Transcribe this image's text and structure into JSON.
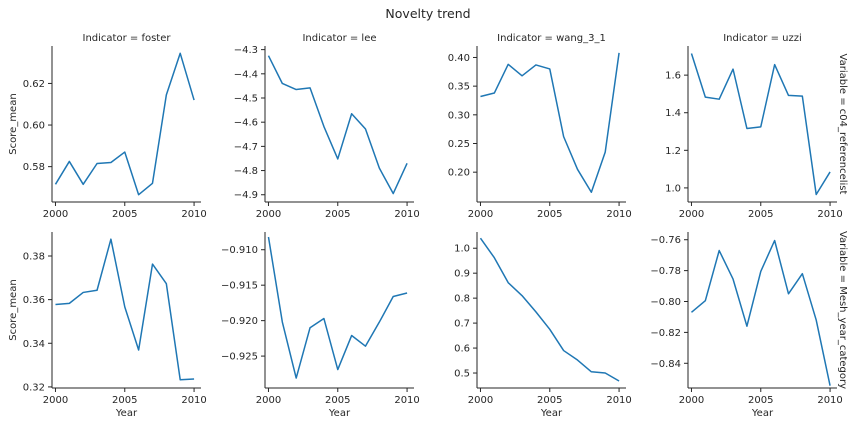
{
  "figure_title": "Novelty trend",
  "colors": {
    "line": "#1f77b4",
    "axis": "#262626"
  },
  "chart_data": [
    {
      "type": "line",
      "panel_title": "Indicator = foster",
      "row_label": "Variable = c04_referencelist",
      "ylabel": "Score_mean",
      "xlabel": "",
      "x": [
        2000,
        2001,
        2002,
        2003,
        2004,
        2005,
        2006,
        2007,
        2008,
        2009,
        2010
      ],
      "values": [
        0.5715,
        0.5825,
        0.5715,
        0.5815,
        0.582,
        0.587,
        0.5665,
        0.572,
        0.6145,
        0.6345,
        0.612
      ],
      "xlim": [
        1999.75,
        2010.5
      ],
      "ylim": [
        0.563,
        0.638
      ],
      "xticks": [
        2000,
        2005,
        2010
      ],
      "xtick_labels": [
        "2000",
        "2005",
        "2010"
      ],
      "yticks": [
        0.58,
        0.6,
        0.62
      ],
      "ytick_labels": [
        "0.58",
        "0.60",
        "0.62"
      ]
    },
    {
      "type": "line",
      "panel_title": "Indicator = lee",
      "row_label": "",
      "ylabel": "",
      "xlabel": "",
      "x": [
        2000,
        2001,
        2002,
        2003,
        2004,
        2005,
        2006,
        2007,
        2008,
        2009,
        2010
      ],
      "values": [
        -4.325,
        -4.44,
        -4.465,
        -4.458,
        -4.618,
        -4.752,
        -4.565,
        -4.628,
        -4.79,
        -4.895,
        -4.77
      ],
      "xlim": [
        1999.75,
        2010.5
      ],
      "ylim": [
        -4.93,
        -4.285
      ],
      "xticks": [
        2000,
        2005,
        2010
      ],
      "xtick_labels": [
        "2000",
        "2005",
        "2010"
      ],
      "yticks": [
        -4.3,
        -4.4,
        -4.5,
        -4.6,
        -4.7,
        -4.8,
        -4.9
      ],
      "ytick_labels": [
        "−4.3",
        "−4.4",
        "−4.5",
        "−4.6",
        "−4.7",
        "−4.8",
        "−4.9"
      ]
    },
    {
      "type": "line",
      "panel_title": "Indicator = wang_3_1",
      "row_label": "",
      "ylabel": "",
      "xlabel": "",
      "x": [
        2000,
        2001,
        2002,
        2003,
        2004,
        2005,
        2006,
        2007,
        2008,
        2009,
        2010
      ],
      "values": [
        0.332,
        0.338,
        0.388,
        0.368,
        0.387,
        0.38,
        0.262,
        0.205,
        0.165,
        0.235,
        0.408
      ],
      "xlim": [
        1999.75,
        2010.5
      ],
      "ylim": [
        0.148,
        0.42
      ],
      "xticks": [
        2000,
        2005,
        2010
      ],
      "xtick_labels": [
        "2000",
        "2005",
        "2010"
      ],
      "yticks": [
        0.2,
        0.25,
        0.3,
        0.35,
        0.4
      ],
      "ytick_labels": [
        "0.20",
        "0.25",
        "0.30",
        "0.35",
        "0.40"
      ]
    },
    {
      "type": "line",
      "panel_title": "Indicator = uzzi",
      "row_label": "Variable = c04_referencelist",
      "ylabel": "",
      "xlabel": "",
      "x": [
        2000,
        2001,
        2002,
        2003,
        2004,
        2005,
        2006,
        2007,
        2008,
        2009,
        2010
      ],
      "values": [
        1.715,
        1.483,
        1.472,
        1.632,
        1.316,
        1.325,
        1.656,
        1.492,
        1.488,
        0.965,
        1.085
      ],
      "xlim": [
        1999.75,
        2010.5
      ],
      "ylim": [
        0.925,
        1.755
      ],
      "xticks": [
        2000,
        2005,
        2010
      ],
      "xtick_labels": [
        "2000",
        "2005",
        "2010"
      ],
      "yticks": [
        1.0,
        1.2,
        1.4,
        1.6
      ],
      "ytick_labels": [
        "1.0",
        "1.2",
        "1.4",
        "1.6"
      ]
    },
    {
      "type": "line",
      "panel_title": "",
      "row_label": "Variable = Mesh_year_category",
      "ylabel": "Score_mean",
      "xlabel": "Year",
      "x": [
        2000,
        2001,
        2002,
        2003,
        2004,
        2005,
        2006,
        2007,
        2008,
        2009,
        2010
      ],
      "values": [
        0.3578,
        0.3583,
        0.3633,
        0.3643,
        0.3877,
        0.3567,
        0.3369,
        0.3763,
        0.3673,
        0.3233,
        0.3236
      ],
      "xlim": [
        1999.75,
        2010.5
      ],
      "ylim": [
        0.3195,
        0.391
      ],
      "xticks": [
        2000,
        2005,
        2010
      ],
      "xtick_labels": [
        "2000",
        "2005",
        "2010"
      ],
      "yticks": [
        0.32,
        0.34,
        0.36,
        0.38
      ],
      "ytick_labels": [
        "0.32",
        "0.34",
        "0.36",
        "0.38"
      ]
    },
    {
      "type": "line",
      "panel_title": "",
      "row_label": "",
      "ylabel": "",
      "xlabel": "Year",
      "x": [
        2000,
        2001,
        2002,
        2003,
        2004,
        2005,
        2006,
        2007,
        2008,
        2009,
        2010
      ],
      "values": [
        -0.9082,
        -0.9202,
        -0.9281,
        -0.921,
        -0.9197,
        -0.9269,
        -0.9221,
        -0.9236,
        -0.9202,
        -0.9166,
        -0.9161
      ],
      "xlim": [
        1999.75,
        2010.5
      ],
      "ylim": [
        -0.9295,
        -0.9075
      ],
      "xticks": [
        2000,
        2005,
        2010
      ],
      "xtick_labels": [
        "2000",
        "2005",
        "2010"
      ],
      "yticks": [
        -0.91,
        -0.915,
        -0.92,
        -0.925
      ],
      "ytick_labels": [
        "−0.910",
        "−0.915",
        "−0.920",
        "−0.925"
      ]
    },
    {
      "type": "line",
      "panel_title": "",
      "row_label": "",
      "ylabel": "",
      "xlabel": "Year",
      "x": [
        2000,
        2001,
        2002,
        2003,
        2004,
        2005,
        2006,
        2007,
        2008,
        2009,
        2010
      ],
      "values": [
        1.04,
        0.962,
        0.862,
        0.81,
        0.745,
        0.675,
        0.59,
        0.552,
        0.505,
        0.5,
        0.468
      ],
      "xlim": [
        1999.75,
        2010.5
      ],
      "ylim": [
        0.44,
        1.065
      ],
      "xticks": [
        2000,
        2005,
        2010
      ],
      "xtick_labels": [
        "2000",
        "2005",
        "2010"
      ],
      "yticks": [
        0.5,
        0.6,
        0.7,
        0.8,
        0.9,
        1.0
      ],
      "ytick_labels": [
        "0.5",
        "0.6",
        "0.7",
        "0.8",
        "0.9",
        "1.0"
      ]
    },
    {
      "type": "line",
      "panel_title": "",
      "row_label": "Variable = Mesh_year_category",
      "ylabel": "",
      "xlabel": "Year",
      "x": [
        2000,
        2001,
        2002,
        2003,
        2004,
        2005,
        2006,
        2007,
        2008,
        2009,
        2010
      ],
      "values": [
        -0.807,
        -0.7995,
        -0.767,
        -0.7855,
        -0.816,
        -0.7805,
        -0.7605,
        -0.795,
        -0.782,
        -0.812,
        -0.8545
      ],
      "xlim": [
        1999.75,
        2010.5
      ],
      "ylim": [
        -0.856,
        -0.755
      ],
      "xticks": [
        2000,
        2005,
        2010
      ],
      "xtick_labels": [
        "2000",
        "2005",
        "2010"
      ],
      "yticks": [
        -0.76,
        -0.78,
        -0.8,
        -0.82,
        -0.84
      ],
      "ytick_labels": [
        "−0.76",
        "−0.78",
        "−0.80",
        "−0.82",
        "−0.84"
      ]
    }
  ]
}
